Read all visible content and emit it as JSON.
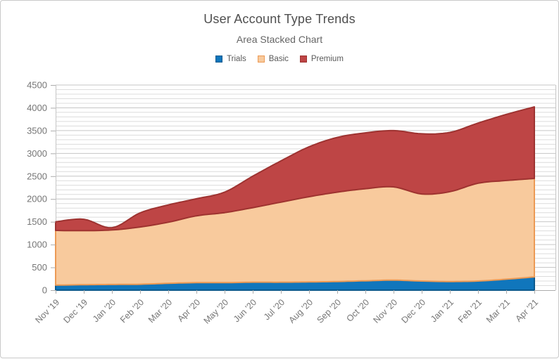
{
  "chart": {
    "title": "User Account Type Trends",
    "subtitle": "Area Stacked Chart"
  },
  "chart_data": {
    "type": "area",
    "stacked": true,
    "title": "User Account Type Trends",
    "subtitle": "Area Stacked Chart",
    "legend_position": "top",
    "grid": true,
    "categories": [
      "Nov '19",
      "Dec '19",
      "Jan '20",
      "Feb '20",
      "Mar '20",
      "Apr '20",
      "May '20",
      "Jun '20",
      "Jul '20",
      "Aug '20",
      "Sep '20",
      "Oct '20",
      "Nov '20",
      "Dec '20",
      "Jan '21",
      "Feb '21",
      "Mar '21",
      "Apr '21"
    ],
    "series": [
      {
        "name": "Trials",
        "color": "#1076bc",
        "stroke": "#0c5a8e",
        "values": [
          110,
          120,
          125,
          130,
          150,
          165,
          165,
          175,
          175,
          180,
          190,
          205,
          220,
          200,
          190,
          200,
          240,
          290
        ]
      },
      {
        "name": "Basic",
        "color": "#f8ca9d",
        "stroke": "#ec9a55",
        "values": [
          1200,
          1185,
          1195,
          1255,
          1340,
          1465,
          1535,
          1635,
          1755,
          1870,
          1960,
          2020,
          2045,
          1910,
          1970,
          2145,
          2165,
          2160
        ]
      },
      {
        "name": "Premium",
        "color": "#be4545",
        "stroke": "#9e3331",
        "values": [
          190,
          250,
          50,
          310,
          380,
          375,
          450,
          690,
          905,
          1095,
          1200,
          1225,
          1235,
          1320,
          1300,
          1320,
          1450,
          1570
        ]
      }
    ],
    "ylim": [
      0,
      4500
    ],
    "y_ticks": [
      0,
      500,
      1000,
      1500,
      2000,
      2500,
      3000,
      3500,
      4000,
      4500
    ],
    "y_minor_step": 100,
    "colors": {
      "grid_minor": "#dcdcdc",
      "grid_major": "#c6c6c6",
      "axis": "#ababab",
      "text": "#767676"
    }
  }
}
